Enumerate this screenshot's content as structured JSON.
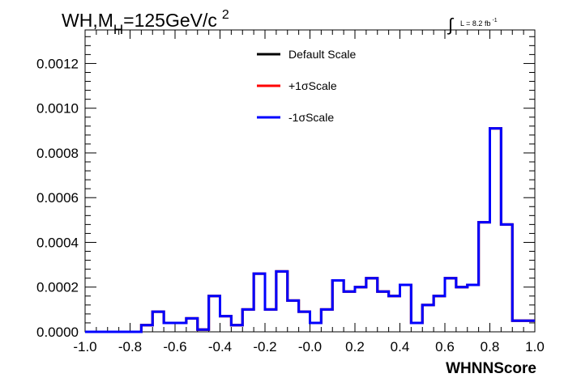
{
  "chart_data": {
    "type": "line",
    "title": {
      "main": "WH,M",
      "sub": "H",
      "rest": "=125GeV/c",
      "sup": "2"
    },
    "lumi": {
      "integral_symbol": "∫",
      "text": "L = 8.2 fb",
      "sup": "-1"
    },
    "xlabel": "WHNNScore",
    "ylabel": "",
    "xlim": [
      -1.0,
      1.0
    ],
    "ylim": [
      0.0,
      0.00135
    ],
    "x_ticks": [
      "-1.0",
      "-0.8",
      "-0.6",
      "-0.4",
      "-0.2",
      "-0.0",
      "0.2",
      "0.4",
      "0.6",
      "0.8",
      "1.0"
    ],
    "y_ticks": [
      "0.0000",
      "0.0002",
      "0.0004",
      "0.0006",
      "0.0008",
      "0.0010",
      "0.0012"
    ],
    "bin_edges": [
      -1.0,
      -0.95,
      -0.9,
      -0.85,
      -0.8,
      -0.75,
      -0.7,
      -0.65,
      -0.6,
      -0.55,
      -0.5,
      -0.45,
      -0.4,
      -0.35,
      -0.3,
      -0.25,
      -0.2,
      -0.15,
      -0.1,
      -0.05,
      0.0,
      0.05,
      0.1,
      0.15,
      0.2,
      0.25,
      0.3,
      0.35,
      0.4,
      0.45,
      0.5,
      0.55,
      0.6,
      0.65,
      0.7,
      0.75,
      0.8,
      0.85,
      0.9,
      0.95,
      1.0
    ],
    "series": [
      {
        "name": "Default Scale",
        "color": "#000000",
        "values": [
          0.0,
          0.0,
          0.0,
          0.0,
          0.0,
          3e-05,
          9e-05,
          4e-05,
          4e-05,
          6e-05,
          1e-05,
          0.00016,
          7e-05,
          3e-05,
          0.0001,
          0.00026,
          0.0001,
          0.00027,
          0.00014,
          9e-05,
          4e-05,
          0.0001,
          0.00023,
          0.00018,
          0.0002,
          0.00024,
          0.00018,
          0.00016,
          0.00021,
          4e-05,
          0.00012,
          0.00016,
          0.00024,
          0.0002,
          0.00021,
          0.00049,
          0.00091,
          0.00048,
          5e-05,
          5e-05
        ]
      },
      {
        "name": "+1σScale",
        "color": "#ff0000",
        "values": [
          0.0,
          0.0,
          0.0,
          0.0,
          0.0,
          3e-05,
          9e-05,
          4e-05,
          4e-05,
          6e-05,
          1e-05,
          0.00016,
          7e-05,
          3e-05,
          0.0001,
          0.00026,
          0.0001,
          0.00027,
          0.00014,
          9e-05,
          4e-05,
          0.0001,
          0.00023,
          0.00018,
          0.0002,
          0.00024,
          0.00018,
          0.00016,
          0.00021,
          4e-05,
          0.00012,
          0.00016,
          0.00024,
          0.0002,
          0.00021,
          0.00049,
          0.00091,
          0.00048,
          5e-05,
          5e-05
        ]
      },
      {
        "name": "-1σScale",
        "color": "#0000ff",
        "values": [
          0.0,
          0.0,
          0.0,
          0.0,
          0.0,
          3e-05,
          9e-05,
          4e-05,
          4e-05,
          6e-05,
          1e-05,
          0.00016,
          7e-05,
          3e-05,
          0.0001,
          0.00026,
          0.0001,
          0.00027,
          0.00014,
          9e-05,
          4e-05,
          0.0001,
          0.00023,
          0.00018,
          0.0002,
          0.00024,
          0.00018,
          0.00016,
          0.00021,
          4e-05,
          0.00012,
          0.00016,
          0.00024,
          0.0002,
          0.00021,
          0.00049,
          0.00091,
          0.00048,
          5e-05,
          5e-05
        ]
      }
    ],
    "grid": false,
    "legend_position": "top-center"
  }
}
